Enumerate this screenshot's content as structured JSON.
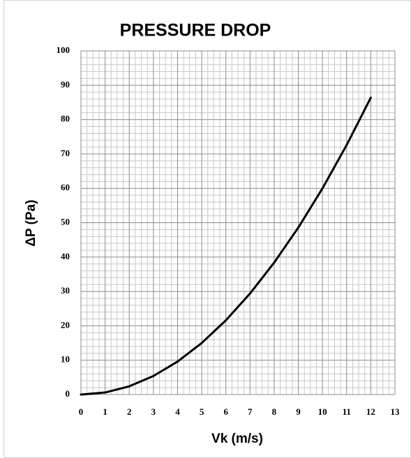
{
  "chart_data": {
    "type": "line",
    "title": "PRESSURE DROP",
    "xlabel": "Vk (m/s)",
    "ylabel": "ΔP (Pa)",
    "x": [
      0,
      1,
      2,
      3,
      4,
      5,
      6,
      7,
      8,
      9,
      10,
      11,
      12
    ],
    "series": [
      {
        "color": "#000000",
        "values": [
          0,
          0.6,
          2.4,
          5.4,
          9.6,
          15,
          21.6,
          29.4,
          38.4,
          48.6,
          60,
          72.6,
          86.4
        ]
      }
    ],
    "xlim": [
      0,
      13
    ],
    "xticks": [
      0,
      1,
      2,
      3,
      4,
      5,
      6,
      7,
      8,
      9,
      10,
      11,
      12,
      13
    ],
    "ylim": [
      0,
      100
    ],
    "yticks": [
      0,
      10,
      20,
      30,
      40,
      50,
      60,
      70,
      80,
      90,
      100
    ],
    "grid": true
  }
}
